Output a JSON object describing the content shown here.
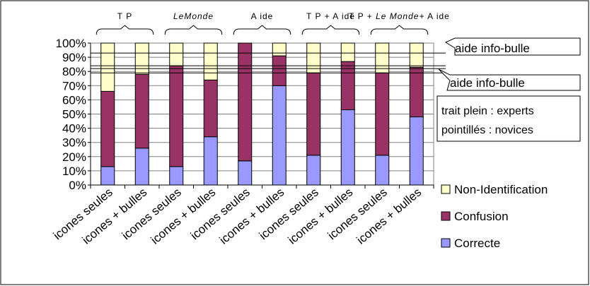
{
  "chart_data": {
    "type": "bar",
    "stacked": true,
    "categories": [
      "icones seules",
      "icones + bulles",
      "icones seules",
      "icones + bulles",
      "icones seules",
      "icones + bulles",
      "icones seules",
      "icones + bulles",
      "icones seules",
      "icones + bulles"
    ],
    "groups": [
      {
        "label": "T P",
        "italic": false
      },
      {
        "label": "LeMonde",
        "italic": true
      },
      {
        "label": "A ide",
        "italic": false
      },
      {
        "label": "T P + A ide",
        "italic": false
      },
      {
        "label_parts": [
          {
            "text": "T P + ",
            "italic": false
          },
          {
            "text": "Le Monde+",
            "italic": true
          },
          {
            "text": "  A ide",
            "italic": false
          }
        ]
      }
    ],
    "series": [
      {
        "name": "Correcte",
        "color": "#9999ff",
        "values": [
          13,
          26,
          13,
          34,
          17,
          70,
          21,
          53,
          21,
          48
        ]
      },
      {
        "name": "Confusion",
        "color": "#993366",
        "values": [
          53,
          52,
          71,
          40,
          83,
          21,
          58,
          34,
          58,
          35
        ]
      },
      {
        "name": "Non-Identification",
        "color": "#ffffcc",
        "values": [
          34,
          22,
          16,
          26,
          0,
          9,
          21,
          13,
          21,
          17
        ]
      }
    ],
    "legend": {
      "position": "right",
      "order": [
        "Non-Identification",
        "Confusion",
        "Correcte"
      ]
    },
    "ylim": [
      0,
      100
    ],
    "yticks": [
      "0%",
      "10%",
      "20%",
      "30%",
      "40%",
      "50%",
      "60%",
      "70%",
      "80%",
      "90%",
      "100%"
    ],
    "reference_lines": [
      {
        "value": 93,
        "style": "solid"
      },
      {
        "value": 84,
        "style": "solid"
      },
      {
        "value": 82,
        "style": "solid"
      },
      {
        "value": 79,
        "style": "solid"
      }
    ],
    "annotations": {
      "callout_top": "aide info-bulle",
      "callout_bottom": "aide info-bulle",
      "note_line1": "trait plein : experts",
      "note_line2": "pointillés : novices"
    }
  }
}
